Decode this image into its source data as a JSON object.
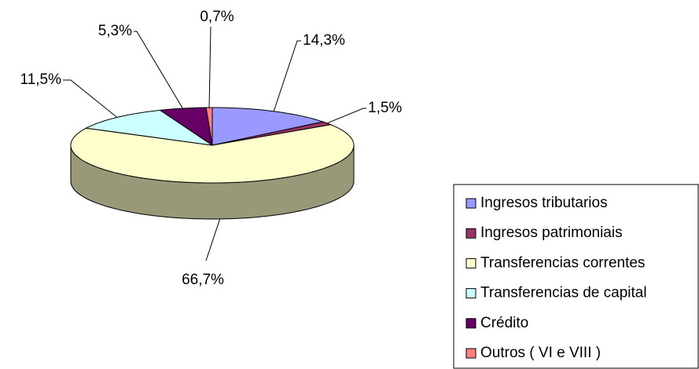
{
  "chart_data": {
    "type": "pie",
    "categories": [
      "Ingresos tributarios",
      "Ingresos patrimoniais",
      "Transferencias correntes",
      "Transferencias de capital",
      "Crédito",
      "Outros ( VI e VIII )"
    ],
    "values": [
      14.3,
      1.5,
      66.7,
      11.5,
      5.3,
      0.7
    ],
    "value_labels": [
      "14,3%",
      "1,5%",
      "66,7%",
      "11,5%",
      "5,3%",
      "0,7%"
    ],
    "colors": [
      "#9999ff",
      "#993366",
      "#ffffcc",
      "#ccffff",
      "#660066",
      "#ff8080"
    ],
    "legend": "right"
  }
}
